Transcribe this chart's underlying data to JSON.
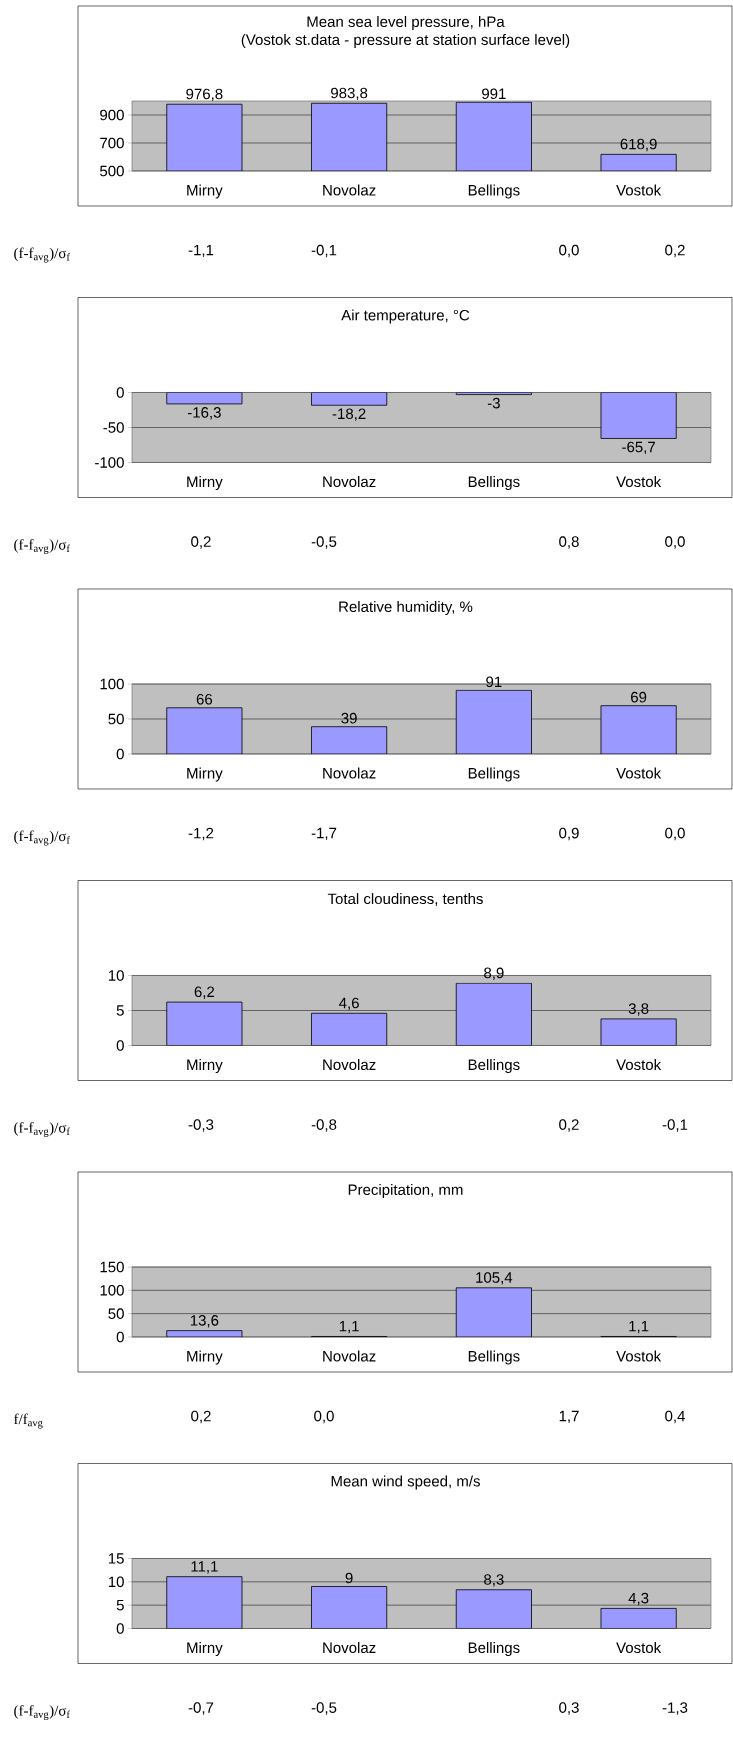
{
  "chart_data": [
    {
      "type": "bar",
      "title": "Mean sea level pressure, hPa",
      "subtitle": "(Vostok st.data - pressure at station surface level)",
      "categories": [
        "Mirny",
        "Novolaz",
        "Bellings",
        "Vostok"
      ],
      "values": [
        976.8,
        983.8,
        991,
        618.9
      ],
      "value_labels": [
        "976,8",
        "983,8",
        "991",
        "618,9"
      ],
      "color": "#9999ff",
      "ylim": [
        500,
        1000
      ],
      "yticks": [
        500,
        700,
        900
      ],
      "grid": "y",
      "annotations": [
        "(f-f$_{avg}$)/σ$_{f}$",
        "-1,1",
        "-0,1",
        "0,0",
        "0,2"
      ]
    },
    {
      "type": "bar",
      "title": "Air temperature, °C",
      "categories": [
        "Mirny",
        "Novolaz",
        "Bellings",
        "Vostok"
      ],
      "values": [
        -16.3,
        -18.2,
        -3,
        -65.7
      ],
      "value_labels": [
        "-16,3",
        "-18,2",
        "-3",
        "-65,7"
      ],
      "color": "#9999ff",
      "ylim": [
        -100,
        0
      ],
      "yticks": [
        -100,
        -50,
        0
      ],
      "grid": "y",
      "annotations": [
        "(f-f$_{avg}$)/σ$_{f}$",
        "0,2",
        "-0,5",
        "0,8",
        "0,0"
      ]
    },
    {
      "type": "bar",
      "title": "Relative humidity, %",
      "categories": [
        "Mirny",
        "Novolaz",
        "Bellings",
        "Vostok"
      ],
      "values": [
        66,
        39,
        91,
        69
      ],
      "value_labels": [
        "66",
        "39",
        "91",
        "69"
      ],
      "color": "#9999ff",
      "ylim": [
        0,
        100
      ],
      "yticks": [
        0,
        50,
        100
      ],
      "grid": "y",
      "annotations": [
        "(f-f$_{avg}$)/σ$_{f}$",
        "-1,2",
        "-1,7",
        "0,9",
        "0,0"
      ]
    },
    {
      "type": "bar",
      "title": "Total cloudiness, tenths",
      "categories": [
        "Mirny",
        "Novolaz",
        "Bellings",
        "Vostok"
      ],
      "values": [
        6.2,
        4.6,
        8.9,
        3.8
      ],
      "value_labels": [
        "6,2",
        "4,6",
        "8,9",
        "3,8"
      ],
      "color": "#9999ff",
      "ylim": [
        0,
        10
      ],
      "yticks": [
        0,
        5,
        10
      ],
      "grid": "y",
      "annotations": [
        "(f-f$_{avg}$)/σ$_{f}$",
        "-0,3",
        "-0,8",
        "0,2",
        "-0,1"
      ]
    },
    {
      "type": "bar",
      "title": "Precipitation, mm",
      "categories": [
        "Mirny",
        "Novolaz",
        "Bellings",
        "Vostok"
      ],
      "values": [
        13.6,
        1.1,
        105.4,
        1.1
      ],
      "value_labels": [
        "13,6",
        "1,1",
        "105,4",
        "1,1"
      ],
      "color": "#9999ff",
      "ylim": [
        0,
        150
      ],
      "yticks": [
        0,
        50,
        100,
        150
      ],
      "grid": "y",
      "annotations": [
        "f/f$_{avg}$",
        "0,2",
        "0,0",
        "1,7",
        "0,4"
      ]
    },
    {
      "type": "bar",
      "title": "Mean wind speed, m/s",
      "categories": [
        "Mirny",
        "Novolaz",
        "Bellings",
        "Vostok"
      ],
      "values": [
        11.1,
        9,
        8.3,
        4.3
      ],
      "value_labels": [
        "11,1",
        "9",
        "8,3",
        "4,3"
      ],
      "color": "#9999ff",
      "ylim": [
        0,
        15
      ],
      "yticks": [
        0,
        5,
        10,
        15
      ],
      "grid": "y",
      "annotations": [
        "(f-f$_{avg}$)/σ$_{f}$",
        "-0,7",
        "-0,5",
        "0,3",
        "-1,3"
      ]
    }
  ]
}
